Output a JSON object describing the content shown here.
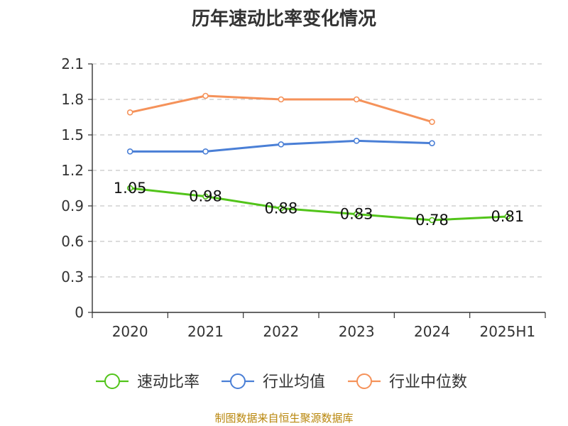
{
  "chart_data": {
    "type": "line",
    "title": "历年速动比率变化情况",
    "categories": [
      "2020",
      "2021",
      "2022",
      "2023",
      "2024",
      "2025H1"
    ],
    "ylim": [
      0,
      2.1
    ],
    "yticks": [
      "0",
      "0.3",
      "0.6",
      "0.9",
      "1.2",
      "1.5",
      "1.8",
      "2.1"
    ],
    "grid": true,
    "legend_position": "bottom",
    "series": [
      {
        "name": "速动比率",
        "color": "#52c41a",
        "values": [
          1.05,
          0.98,
          0.88,
          0.83,
          0.78,
          0.81
        ],
        "data_labels": [
          "1.05",
          "0.98",
          "0.88",
          "0.83",
          "0.78",
          "0.81"
        ]
      },
      {
        "name": "行业均值",
        "color": "#4a7fd6",
        "values": [
          1.36,
          1.36,
          1.42,
          1.45,
          1.43,
          null
        ]
      },
      {
        "name": "行业中位数",
        "color": "#f5925a",
        "values": [
          1.69,
          1.83,
          1.8,
          1.8,
          1.61,
          null
        ]
      }
    ]
  },
  "footer": {
    "source": "制图数据来自恒生聚源数据库"
  }
}
